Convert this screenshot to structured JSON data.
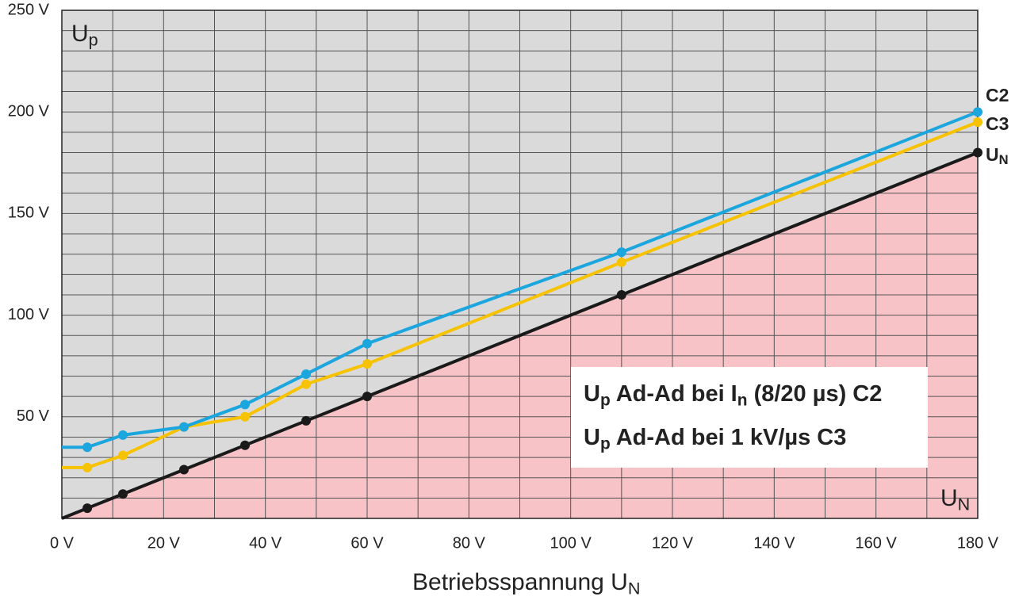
{
  "chart_data": {
    "type": "line",
    "y_title": [
      "U",
      "p"
    ],
    "x_corner_title": [
      "U",
      "N"
    ],
    "x_title": [
      "Betriebsspannung U",
      "N"
    ],
    "x": [
      0,
      5,
      12,
      24,
      36,
      48,
      60,
      110,
      180
    ],
    "series": [
      {
        "name": "C2",
        "color": "#1ba6de",
        "values": [
          35,
          35,
          41,
          45,
          56,
          71,
          86,
          131,
          200
        ],
        "legend": [
          "U",
          "p",
          "  Ad-Ad bei I",
          "n",
          " (8/20 µs) C2"
        ]
      },
      {
        "name": "C3",
        "color": "#f7c300",
        "values": [
          25,
          25,
          31,
          45,
          50,
          66,
          76,
          126,
          195
        ],
        "legend": [
          "U",
          "p",
          "  Ad-Ad bei 1 kV/µs C3"
        ]
      },
      {
        "name": [
          "U",
          "N"
        ],
        "color": "#1a1a1a",
        "fill": "#f8c3c6",
        "values": [
          0,
          5,
          12,
          24,
          36,
          48,
          60,
          110,
          180
        ]
      }
    ],
    "xlim": [
      0,
      180
    ],
    "ylim": [
      0,
      250
    ],
    "xticks": [
      {
        "value": 0,
        "label": "0 V"
      },
      {
        "value": 20,
        "label": "20 V"
      },
      {
        "value": 40,
        "label": "40 V"
      },
      {
        "value": 60,
        "label": "60 V"
      },
      {
        "value": 80,
        "label": "80 V"
      },
      {
        "value": 100,
        "label": "100 V"
      },
      {
        "value": 120,
        "label": "120 V"
      },
      {
        "value": 140,
        "label": "140 V"
      },
      {
        "value": 160,
        "label": "160 V"
      },
      {
        "value": 180,
        "label": "180 V"
      }
    ],
    "yticks": [
      {
        "value": 50,
        "label": "50 V"
      },
      {
        "value": 100,
        "label": "100 V"
      },
      {
        "value": 150,
        "label": "150 V"
      },
      {
        "value": 200,
        "label": "200 V"
      },
      {
        "value": 250,
        "label": "250 V"
      }
    ],
    "xminorticks": [
      10,
      30,
      50,
      70,
      90,
      110,
      130,
      150,
      170
    ],
    "yminorticks": [
      10,
      20,
      30,
      40,
      60,
      70,
      80,
      90,
      110,
      120,
      130,
      140,
      160,
      170,
      180,
      190,
      210,
      220,
      230,
      240
    ],
    "grid": true,
    "background": "#dadada"
  }
}
